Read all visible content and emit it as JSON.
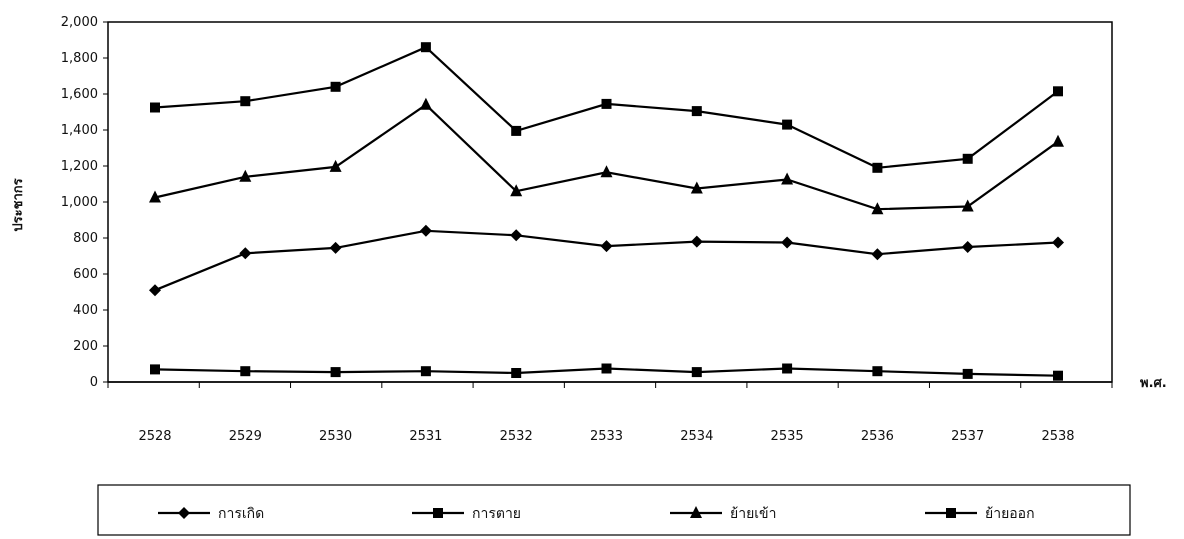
{
  "chart_data": {
    "type": "line",
    "title": "",
    "xlabel": "พ.ศ.",
    "ylabel": "ประชากร",
    "categories": [
      "2528",
      "2529",
      "2530",
      "2531",
      "2532",
      "2533",
      "2534",
      "2535",
      "2536",
      "2537",
      "2538"
    ],
    "ylim": [
      0,
      2000
    ],
    "y_ticks": [
      "0",
      "200",
      "400",
      "600",
      "800",
      "1,000",
      "1,200",
      "1,400",
      "1,600",
      "1,800",
      "2,000"
    ],
    "legend_position": "bottom",
    "grid": false,
    "series": [
      {
        "name": "การเกิด",
        "marker": "diamond",
        "values": [
          510,
          715,
          745,
          840,
          815,
          755,
          780,
          775,
          710,
          750,
          775
        ]
      },
      {
        "name": "การตาย",
        "marker": "square",
        "values": [
          1525,
          1560,
          1640,
          1860,
          1395,
          1545,
          1505,
          1430,
          1190,
          1240,
          1615
        ]
      },
      {
        "name": "ย้ายเข้า",
        "marker": "triangle",
        "values": [
          1025,
          1140,
          1195,
          1540,
          1060,
          1165,
          1075,
          1125,
          960,
          975,
          1335
        ]
      },
      {
        "name": "ย้ายออก",
        "marker": "square",
        "values": [
          70,
          60,
          55,
          60,
          50,
          75,
          55,
          75,
          60,
          45,
          35
        ]
      }
    ]
  }
}
